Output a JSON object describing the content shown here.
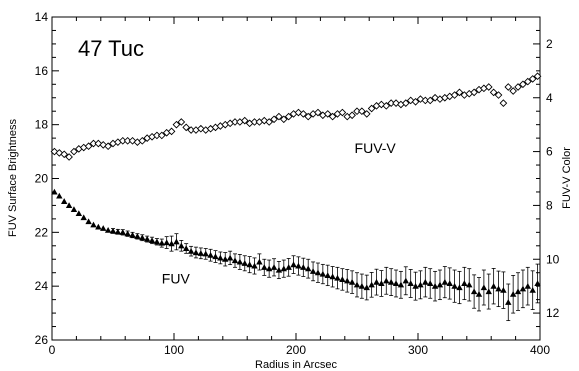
{
  "chart_data": {
    "type": "scatter",
    "title": "47 Tuc",
    "xlabel": "Radius in Arcsec",
    "ylabel_left": "FUV Surface Brightness",
    "ylabel_right": "FUV-V Color",
    "xlim": [
      0,
      400
    ],
    "ylim_left": [
      26,
      14
    ],
    "ylim_right": [
      13,
      1
    ],
    "x_ticks": [
      "0",
      "100",
      "200",
      "300",
      "400"
    ],
    "y_left_ticks": [
      "14",
      "16",
      "18",
      "20",
      "22",
      "24",
      "26"
    ],
    "y_right_ticks": [
      "2",
      "4",
      "6",
      "8",
      "10",
      "12"
    ],
    "grid": false,
    "series": [
      {
        "name": "FUV",
        "axis": "left",
        "marker": "filled-triangle",
        "x": [
          2,
          6,
          10,
          14,
          18,
          22,
          26,
          30,
          34,
          38,
          42,
          46,
          50,
          54,
          58,
          62,
          66,
          70,
          74,
          78,
          82,
          86,
          90,
          94,
          98,
          102,
          106,
          110,
          114,
          118,
          122,
          126,
          130,
          134,
          138,
          142,
          146,
          150,
          154,
          158,
          162,
          166,
          170,
          174,
          178,
          182,
          186,
          190,
          194,
          198,
          202,
          206,
          210,
          214,
          218,
          222,
          226,
          230,
          234,
          238,
          242,
          246,
          250,
          254,
          258,
          262,
          266,
          270,
          274,
          278,
          282,
          286,
          290,
          294,
          298,
          302,
          306,
          310,
          314,
          318,
          322,
          326,
          330,
          334,
          338,
          342,
          346,
          350,
          354,
          358,
          362,
          366,
          370,
          374,
          378,
          382,
          386,
          390,
          394,
          398
        ],
        "y": [
          20.5,
          20.65,
          20.85,
          21.0,
          21.15,
          21.3,
          21.45,
          21.6,
          21.72,
          21.8,
          21.85,
          21.92,
          21.95,
          21.98,
          22.0,
          22.05,
          22.1,
          22.15,
          22.2,
          22.25,
          22.3,
          22.35,
          22.4,
          22.38,
          22.42,
          22.35,
          22.5,
          22.6,
          22.7,
          22.75,
          22.78,
          22.8,
          22.85,
          22.9,
          22.95,
          23.0,
          22.95,
          23.05,
          23.1,
          23.15,
          23.2,
          23.25,
          23.1,
          23.3,
          23.35,
          23.3,
          23.4,
          23.35,
          23.3,
          23.2,
          23.25,
          23.3,
          23.35,
          23.45,
          23.5,
          23.55,
          23.6,
          23.65,
          23.7,
          23.75,
          23.8,
          23.85,
          23.95,
          24.0,
          24.05,
          23.95,
          23.85,
          23.9,
          23.8,
          23.85,
          23.9,
          23.95,
          23.8,
          23.9,
          24.0,
          23.95,
          23.85,
          23.9,
          24.0,
          23.95,
          23.85,
          23.9,
          24.0,
          24.05,
          23.9,
          23.95,
          24.2,
          24.3,
          24.05,
          24.2,
          24.0,
          24.1,
          24.15,
          24.6,
          24.3,
          24.2,
          24.1,
          24.0,
          24.15,
          23.9
        ],
        "err": [
          0.05,
          0.05,
          0.05,
          0.06,
          0.06,
          0.06,
          0.07,
          0.07,
          0.07,
          0.08,
          0.08,
          0.08,
          0.09,
          0.09,
          0.1,
          0.1,
          0.1,
          0.1,
          0.11,
          0.11,
          0.12,
          0.12,
          0.15,
          0.22,
          0.28,
          0.3,
          0.2,
          0.18,
          0.18,
          0.2,
          0.2,
          0.2,
          0.22,
          0.22,
          0.22,
          0.25,
          0.25,
          0.25,
          0.28,
          0.28,
          0.3,
          0.3,
          0.3,
          0.3,
          0.32,
          0.32,
          0.32,
          0.32,
          0.33,
          0.33,
          0.34,
          0.34,
          0.35,
          0.35,
          0.36,
          0.36,
          0.38,
          0.38,
          0.4,
          0.4,
          0.42,
          0.42,
          0.45,
          0.45,
          0.46,
          0.46,
          0.48,
          0.48,
          0.5,
          0.5,
          0.5,
          0.5,
          0.52,
          0.52,
          0.52,
          0.52,
          0.55,
          0.55,
          0.55,
          0.55,
          0.58,
          0.58,
          0.6,
          0.6,
          0.6,
          0.6,
          0.62,
          0.62,
          0.65,
          0.65,
          0.66,
          0.66,
          0.68,
          0.68,
          0.7,
          0.7,
          0.7,
          0.7,
          0.72,
          0.72
        ]
      },
      {
        "name": "FUV-V",
        "axis": "right",
        "marker": "open-diamond",
        "x": [
          2,
          6,
          10,
          14,
          18,
          22,
          26,
          30,
          34,
          38,
          42,
          46,
          50,
          54,
          58,
          62,
          66,
          70,
          74,
          78,
          82,
          86,
          90,
          94,
          98,
          102,
          106,
          110,
          114,
          118,
          122,
          126,
          130,
          134,
          138,
          142,
          146,
          150,
          154,
          158,
          162,
          166,
          170,
          174,
          178,
          182,
          186,
          190,
          194,
          198,
          202,
          206,
          210,
          214,
          218,
          222,
          226,
          230,
          234,
          238,
          242,
          246,
          250,
          254,
          258,
          262,
          266,
          270,
          274,
          278,
          282,
          286,
          290,
          294,
          298,
          302,
          306,
          310,
          314,
          318,
          322,
          326,
          330,
          334,
          338,
          342,
          346,
          350,
          354,
          358,
          362,
          366,
          370,
          374,
          378,
          382,
          386,
          390,
          394,
          398
        ],
        "y": [
          6.0,
          6.05,
          6.1,
          6.2,
          6.0,
          5.9,
          5.85,
          5.8,
          5.7,
          5.7,
          5.75,
          5.8,
          5.7,
          5.65,
          5.6,
          5.6,
          5.6,
          5.65,
          5.6,
          5.5,
          5.45,
          5.4,
          5.4,
          5.3,
          5.25,
          5.0,
          4.9,
          5.1,
          5.2,
          5.2,
          5.15,
          5.2,
          5.15,
          5.1,
          5.05,
          5.0,
          4.95,
          4.9,
          4.9,
          4.85,
          4.95,
          4.9,
          4.9,
          4.85,
          4.9,
          4.8,
          4.7,
          4.8,
          4.7,
          4.6,
          4.55,
          4.6,
          4.7,
          4.6,
          4.55,
          4.65,
          4.6,
          4.7,
          4.6,
          4.55,
          4.7,
          4.65,
          4.5,
          4.5,
          4.6,
          4.4,
          4.3,
          4.25,
          4.3,
          4.2,
          4.2,
          4.25,
          4.2,
          4.1,
          4.15,
          4.05,
          4.1,
          4.1,
          4.0,
          4.05,
          4.0,
          3.95,
          3.9,
          3.8,
          3.9,
          3.85,
          3.8,
          3.7,
          3.65,
          3.6,
          3.8,
          3.9,
          4.2,
          3.6,
          3.75,
          3.6,
          3.5,
          3.4,
          3.3,
          3.2
        ]
      }
    ],
    "annotations": [
      {
        "text": "FUV-V",
        "x": 248,
        "y_right": 6.05
      },
      {
        "text": "FUV",
        "x": 90,
        "y_left": 23.9
      }
    ]
  }
}
